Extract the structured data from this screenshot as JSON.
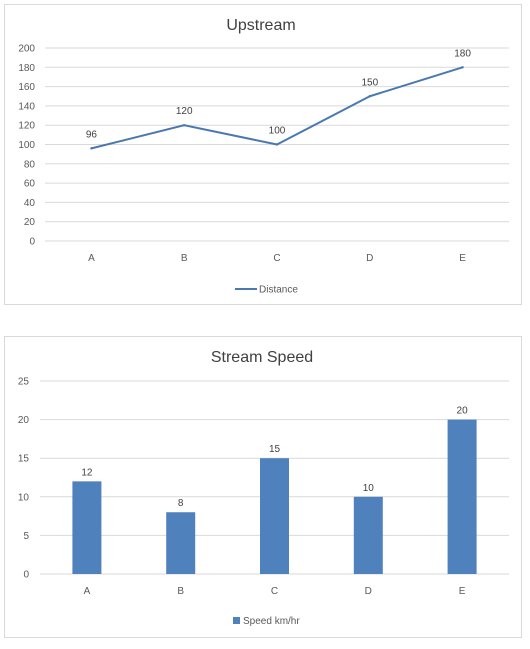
{
  "chart_data": [
    {
      "type": "line",
      "title": "Upstream",
      "categories": [
        "A",
        "B",
        "C",
        "D",
        "E"
      ],
      "series": [
        {
          "name": "Distance",
          "values": [
            96,
            120,
            100,
            150,
            180
          ]
        }
      ],
      "data_labels": [
        "96",
        "120",
        "100",
        "150",
        "180"
      ],
      "ylim": [
        0,
        200
      ],
      "yticks": [
        "0",
        "20",
        "40",
        "60",
        "80",
        "100",
        "120",
        "140",
        "160",
        "180",
        "200"
      ],
      "grid": true,
      "legend": "bottom",
      "color": "#4a78b0"
    },
    {
      "type": "bar",
      "title": "Stream Speed",
      "categories": [
        "A",
        "B",
        "C",
        "D",
        "E"
      ],
      "series": [
        {
          "name": "Speed km/hr",
          "values": [
            12,
            8,
            15,
            10,
            20
          ]
        }
      ],
      "data_labels": [
        "12",
        "8",
        "15",
        "10",
        "20"
      ],
      "ylim": [
        0,
        25
      ],
      "yticks": [
        "0",
        "5",
        "10",
        "15",
        "20",
        "25"
      ],
      "grid": true,
      "legend": "bottom",
      "color": "#4f81bd"
    }
  ]
}
